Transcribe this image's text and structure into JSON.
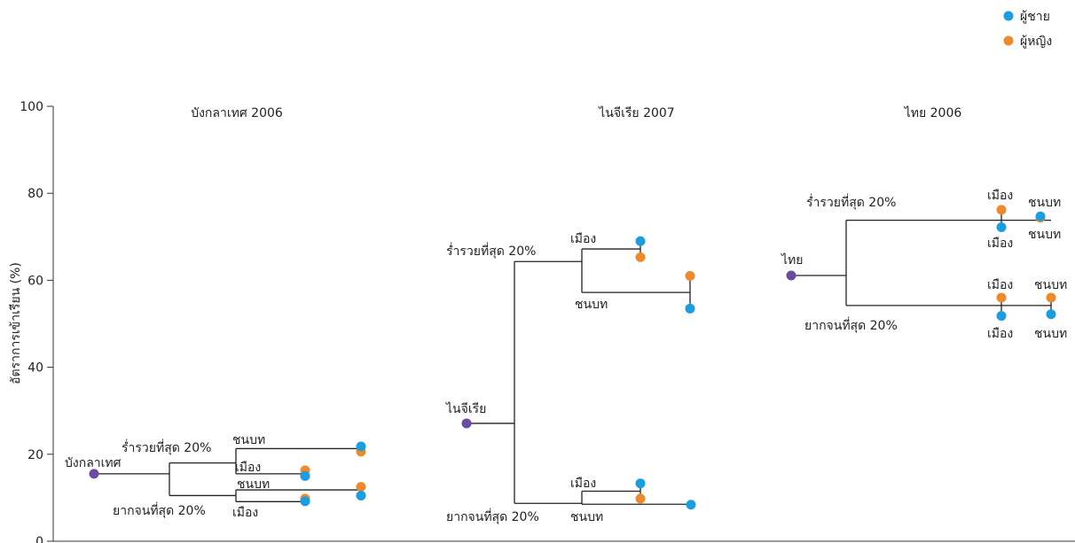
{
  "colors": {
    "male": "#1a9ee0",
    "female": "#ef8a2c",
    "root": "#6a4aa3",
    "line": "#222222"
  },
  "chart_data": {
    "type": "tree-dot",
    "ylabel": "อัตราการเข้าเรียน (%)",
    "ylim": [
      0,
      100
    ],
    "yticks": [
      0,
      20,
      40,
      60,
      80,
      100
    ],
    "legend": {
      "position": "top-right",
      "items": [
        {
          "key": "male",
          "label": "ผู้ชาย"
        },
        {
          "key": "female",
          "label": "ผู้หญิง"
        }
      ]
    },
    "panels": [
      {
        "title": "บังกลาเทศ 2006",
        "root": {
          "label": "บังกลาเทศ",
          "value": 15.5
        },
        "groups": [
          {
            "label": "ร่ำรวยที่สุด 20%",
            "value": 18,
            "sub": [
              {
                "label": "ชนบท",
                "value": 21.3,
                "male": 21.8,
                "female": 20.6
              },
              {
                "label": "เมือง",
                "value": 15.5,
                "male": 15.0,
                "female": 16.3
              }
            ]
          },
          {
            "label": "ยากจนที่สุด 20%",
            "value": 10.5,
            "sub": [
              {
                "label": "ชนบท",
                "value": 11.8,
                "male": 10.5,
                "female": 12.5
              },
              {
                "label": "เมือง",
                "value": 9.1,
                "male": 9.2,
                "female": 9.8
              }
            ]
          }
        ]
      },
      {
        "title": "ไนจีเรีย 2007",
        "root": {
          "label": "ไนจีเรีย",
          "value": 27.1
        },
        "groups": [
          {
            "label": "ร่ำรวยที่สุด 20%",
            "value": 64.3,
            "sub": [
              {
                "label": "เมือง",
                "value": 67.2,
                "male": 69.0,
                "female": 65.3
              },
              {
                "label": "ชนบท",
                "value": 57.2,
                "male": 53.5,
                "female": 61.0
              }
            ]
          },
          {
            "label": "ยากจนที่สุด 20%",
            "value": 8.7,
            "sub": [
              {
                "label": "เมือง",
                "value": 11.5,
                "male": 13.3,
                "female": 9.8
              },
              {
                "label": "ชนบท",
                "value": 8.5,
                "male": 8.4,
                "female": null
              }
            ]
          }
        ]
      },
      {
        "title": "ไทย 2006",
        "root": {
          "label": "ไทย",
          "value": 61.1
        },
        "groups": [
          {
            "label": "ร่ำรวยที่สุด 20%",
            "value": 73.8,
            "sub": [
              {
                "label": "เมือง",
                "value": 73.8,
                "male": 72.2,
                "female": 76.2
              },
              {
                "label": "ชนบท",
                "value": 73.8,
                "male": 74.7,
                "female": 74.4
              }
            ]
          },
          {
            "label": "ยากจนที่สุด 20%",
            "value": 54.2,
            "sub": [
              {
                "label": "เมือง",
                "value": 54.2,
                "male": 51.8,
                "female": 56.0
              },
              {
                "label": "ชนบท",
                "value": 54.2,
                "male": 52.2,
                "female": 56.0
              }
            ]
          }
        ]
      }
    ]
  }
}
